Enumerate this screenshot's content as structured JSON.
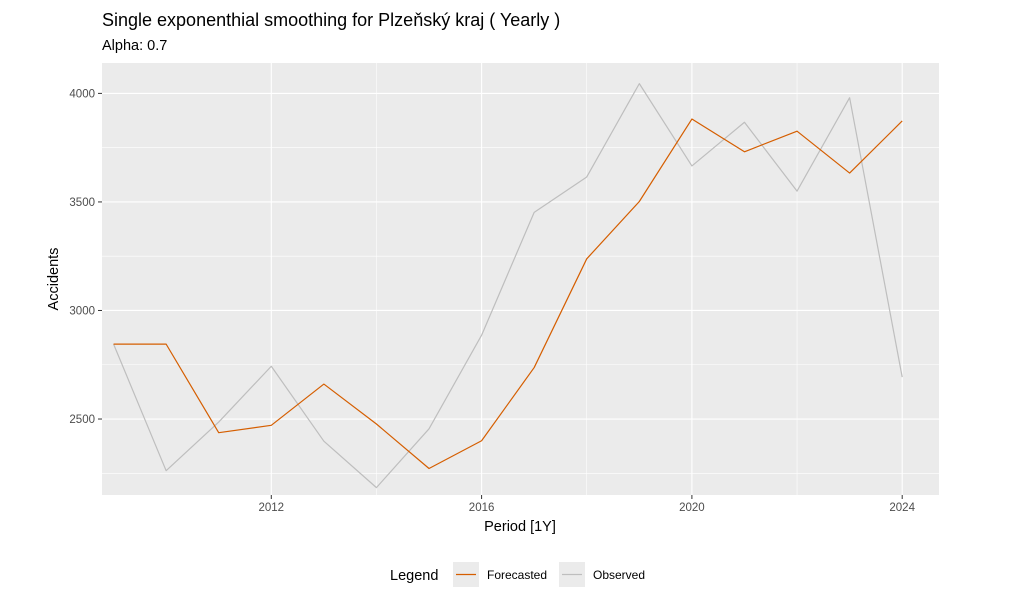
{
  "chart_data": {
    "type": "line",
    "title": "Single exponenthial smoothing for Plzeňský kraj ( Yearly )",
    "subtitle": "Alpha: 0.7",
    "xlabel": "Period [1Y]",
    "ylabel": "Accidents",
    "x_ticks": [
      2012,
      2016,
      2020,
      2024
    ],
    "y_ticks": [
      2500,
      3000,
      3500,
      4000
    ],
    "xlim": [
      2008.78,
      2024.7
    ],
    "ylim": [
      2150,
      4140
    ],
    "grid": true,
    "x": [
      2009,
      2010,
      2011,
      2012,
      2013,
      2014,
      2015,
      2016,
      2017,
      2018,
      2019,
      2020,
      2021,
      2022,
      2023,
      2024
    ],
    "series": [
      {
        "name": "Forecasted",
        "color": "#D55E00",
        "values": [
          2845,
          2845,
          2437,
          2471,
          2661,
          2477,
          2272,
          2400,
          2737,
          3238,
          3502,
          3882,
          3731,
          3826,
          3633,
          3873
        ]
      },
      {
        "name": "Observed",
        "color": "#BEBEBE",
        "values": [
          2845,
          2262,
          2486,
          2743,
          2398,
          2184,
          2455,
          2886,
          3452,
          3615,
          4045,
          3666,
          3867,
          3550,
          3980,
          2693
        ]
      }
    ],
    "legend": {
      "title": "Legend",
      "position": "bottom",
      "entries": [
        "Forecasted",
        "Observed"
      ]
    }
  }
}
